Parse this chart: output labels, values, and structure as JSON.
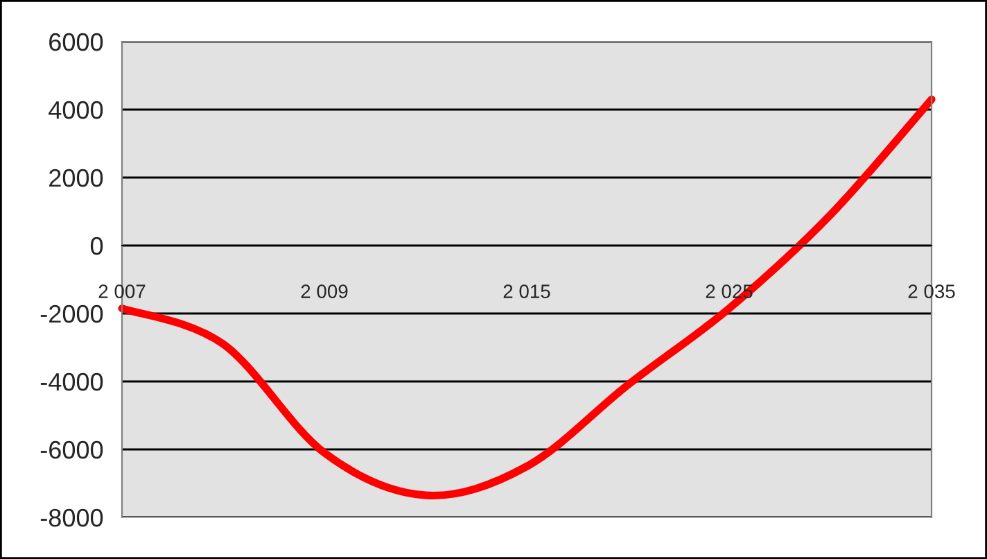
{
  "chart_data": {
    "type": "line",
    "categories": [
      "2 007",
      null,
      "2 009",
      null,
      "2 015",
      null,
      "2 025",
      null,
      "2 035"
    ],
    "series": [
      {
        "color": "#ff0000",
        "values": [
          -1850,
          -2900,
          -6100,
          -7350,
          -6500,
          -4100,
          -1850,
          900,
          4300
        ]
      }
    ],
    "ylim": [
      -8000,
      6000
    ],
    "yticks": [
      -8000,
      -6000,
      -4000,
      -2000,
      0,
      2000,
      4000,
      6000
    ],
    "grid": "y",
    "legend": false,
    "marker": "none",
    "line_style": "solid"
  }
}
